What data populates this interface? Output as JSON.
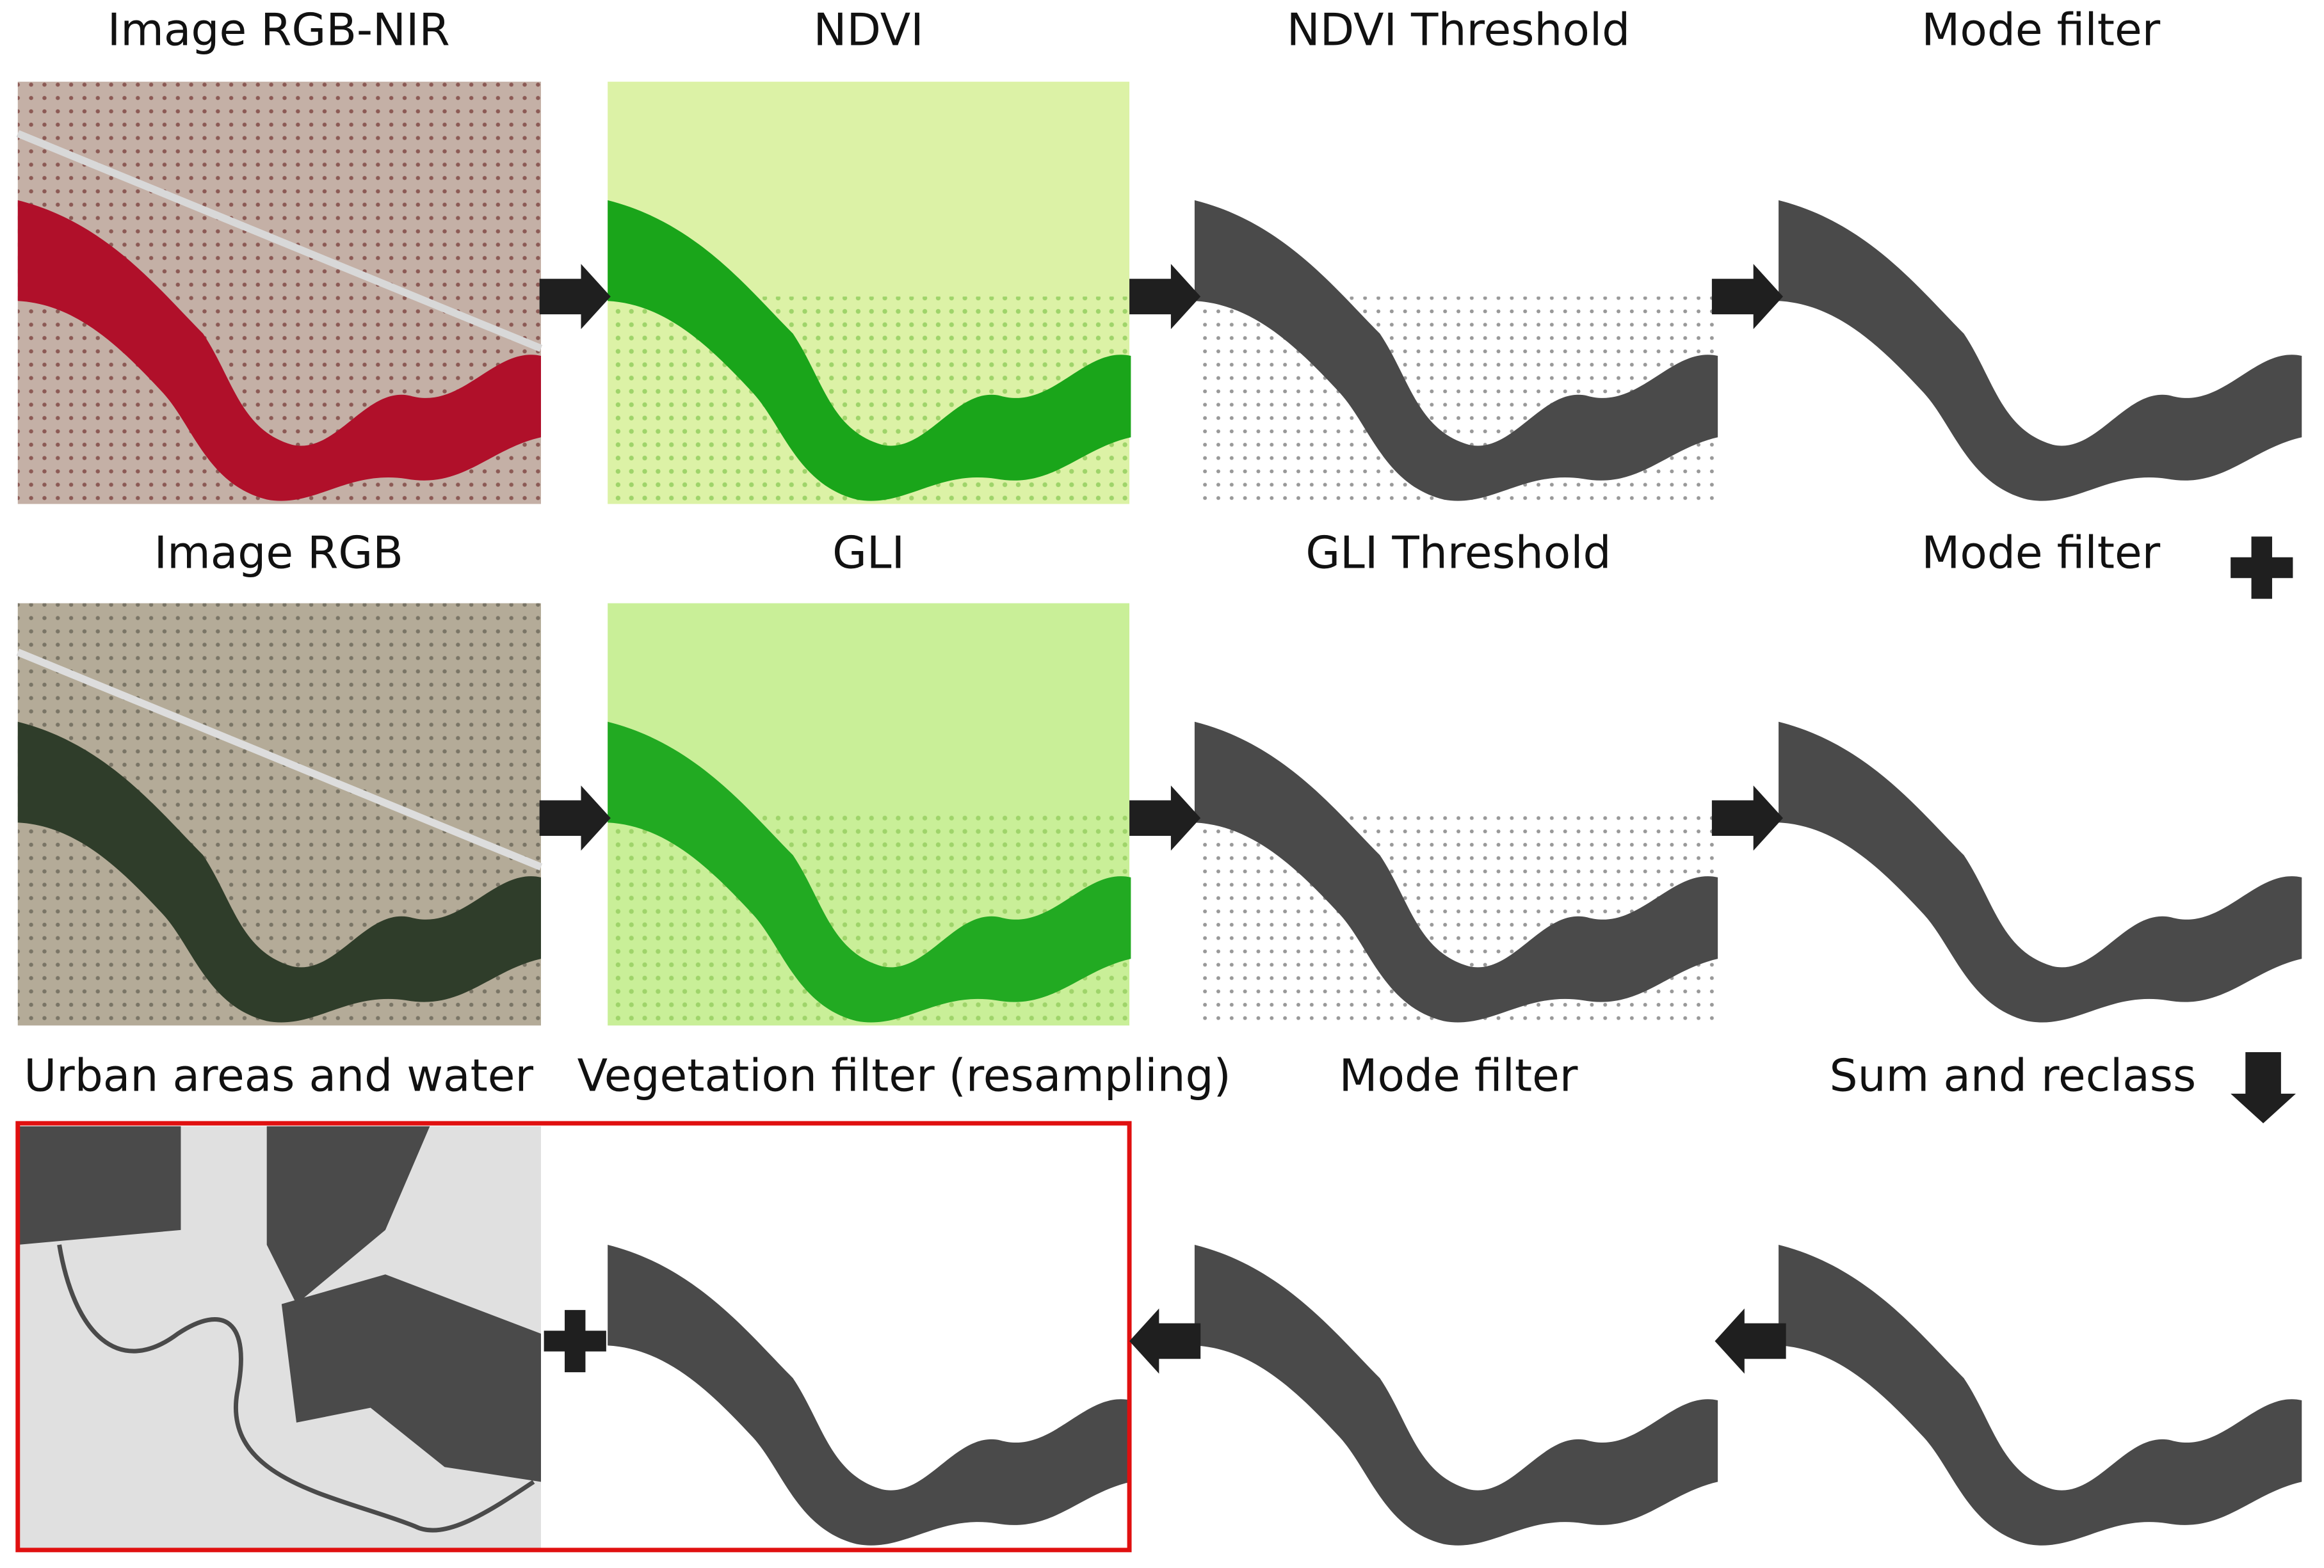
{
  "panels": [
    {
      "label": "Image RGB-NIR"
    },
    {
      "label": "NDVI"
    },
    {
      "label": "NDVI Threshold"
    },
    {
      "label": "Mode filter"
    },
    {
      "label": "Image RGB"
    },
    {
      "label": "GLI"
    },
    {
      "label": "GLI Threshold"
    },
    {
      "label": "Mode filter"
    },
    {
      "label": "Urban areas and water"
    },
    {
      "label": "Vegetation filter (resampling)"
    },
    {
      "label": "Mode filter"
    },
    {
      "label": "Sum and reclass"
    }
  ]
}
